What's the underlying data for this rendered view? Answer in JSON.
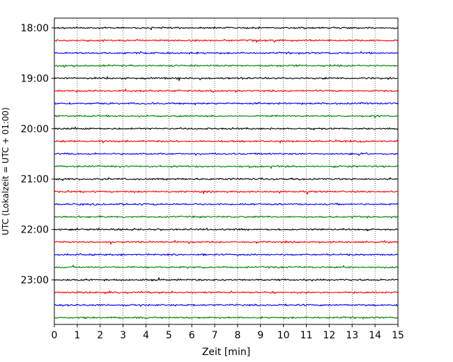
{
  "chart_data": {
    "type": "line",
    "title": "",
    "xlabel": "Zeit  [min]",
    "ylabel": "UTC (Lokalzeit = UTC + 01:00)",
    "xlim": [
      0,
      15
    ],
    "x_ticks": [
      "0",
      "1",
      "2",
      "3",
      "4",
      "5",
      "6",
      "7",
      "8",
      "9",
      "10",
      "11",
      "12",
      "13",
      "14",
      "15"
    ],
    "y_tick_labels": [
      "18:00",
      "19:00",
      "20:00",
      "21:00",
      "22:00",
      "23:00"
    ],
    "trace_start_times": [
      "18:00",
      "18:15",
      "18:30",
      "18:45",
      "19:00",
      "19:15",
      "19:30",
      "19:45",
      "20:00",
      "20:15",
      "20:30",
      "20:45",
      "21:00",
      "21:15",
      "21:30",
      "21:45",
      "22:00",
      "22:15",
      "22:30",
      "22:45",
      "23:00",
      "23:15",
      "23:30",
      "23:45"
    ],
    "trace_duration_min": 15,
    "trace_colors": [
      "#000000",
      "#ff0000",
      "#0000ff",
      "#008000"
    ],
    "vertical_grid": true,
    "grid_style": "dotted",
    "signal": "seismic noise (continuous low-amplitude)"
  }
}
